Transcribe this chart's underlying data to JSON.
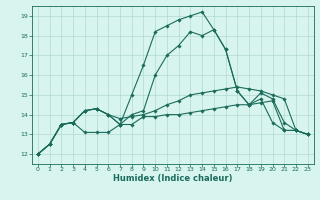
{
  "title": "",
  "xlabel": "Humidex (Indice chaleur)",
  "bg_color": "#d8f4ef",
  "grid_color": "#b0d9d3",
  "line_color": "#1a6b5a",
  "xlim": [
    -0.5,
    23.5
  ],
  "ylim": [
    11.5,
    19.5
  ],
  "yticks": [
    12,
    13,
    14,
    15,
    16,
    17,
    18,
    19
  ],
  "xticks": [
    0,
    1,
    2,
    3,
    4,
    5,
    6,
    7,
    8,
    9,
    10,
    11,
    12,
    13,
    14,
    15,
    16,
    17,
    18,
    19,
    20,
    21,
    22,
    23
  ],
  "lines": [
    [
      12.0,
      12.5,
      13.5,
      13.6,
      13.1,
      13.1,
      13.1,
      13.5,
      13.5,
      13.9,
      13.9,
      14.0,
      14.0,
      14.1,
      14.2,
      14.3,
      14.4,
      14.5,
      14.5,
      14.6,
      14.7,
      13.2,
      13.2,
      13.0
    ],
    [
      12.0,
      12.5,
      13.5,
      13.6,
      14.2,
      14.3,
      14.0,
      13.8,
      13.9,
      14.0,
      14.2,
      14.5,
      14.7,
      15.0,
      15.1,
      15.2,
      15.3,
      15.4,
      15.3,
      15.2,
      15.0,
      14.8,
      13.2,
      13.0
    ],
    [
      12.0,
      12.5,
      13.5,
      13.6,
      14.2,
      14.3,
      14.0,
      13.5,
      14.0,
      14.2,
      16.0,
      17.0,
      17.5,
      18.2,
      18.0,
      18.3,
      17.3,
      15.2,
      14.5,
      14.8,
      13.6,
      13.2,
      13.2,
      13.0
    ],
    [
      12.0,
      12.5,
      13.5,
      13.6,
      14.2,
      14.3,
      14.0,
      13.5,
      15.0,
      16.5,
      18.2,
      18.5,
      18.8,
      19.0,
      19.2,
      18.3,
      17.3,
      15.2,
      14.5,
      15.1,
      14.8,
      13.6,
      13.2,
      13.0
    ]
  ]
}
